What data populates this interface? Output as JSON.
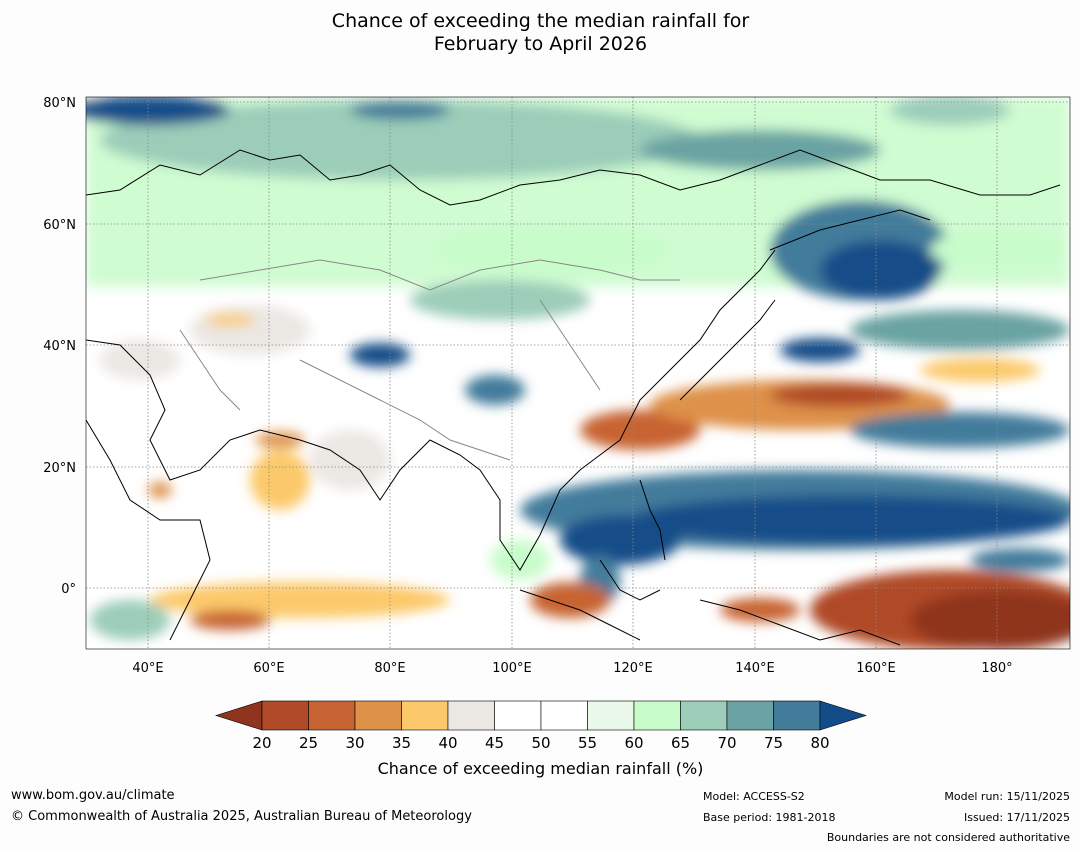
{
  "title": {
    "line1": "Chance of exceeding the median rainfall for",
    "line2": "February to April 2026"
  },
  "map": {
    "lat_labels": [
      "80°N",
      "60°N",
      "40°N",
      "20°N",
      "0°"
    ],
    "lon_labels": [
      "40°E",
      "60°E",
      "80°E",
      "100°E",
      "120°E",
      "140°E",
      "160°E",
      "180°"
    ]
  },
  "colorbar": {
    "ticks": [
      "20",
      "25",
      "30",
      "35",
      "40",
      "45",
      "50",
      "55",
      "60",
      "65",
      "70",
      "75",
      "80"
    ],
    "colors": [
      "#8f341d",
      "#b04a28",
      "#c86433",
      "#de9148",
      "#fcc96a",
      "#ebe7e3",
      "#ffffff",
      "#ffffff",
      "#e9f8e9",
      "#c8fcca",
      "#9ccdb9",
      "#6aa3a3",
      "#437c9b",
      "#124d89"
    ],
    "title": "Chance of exceeding median rainfall (%)"
  },
  "footer": {
    "url": "www.bom.gov.au/climate",
    "copyright": "© Commonwealth of Australia 2025, Australian Bureau of Meteorology",
    "model": "Model: ACCESS-S2",
    "base_period": "Base period: 1981-2018",
    "model_run": "Model run: 15/11/2025",
    "issued": "Issued: 17/11/2025",
    "disclaimer": "Boundaries are not considered authoritative"
  }
}
